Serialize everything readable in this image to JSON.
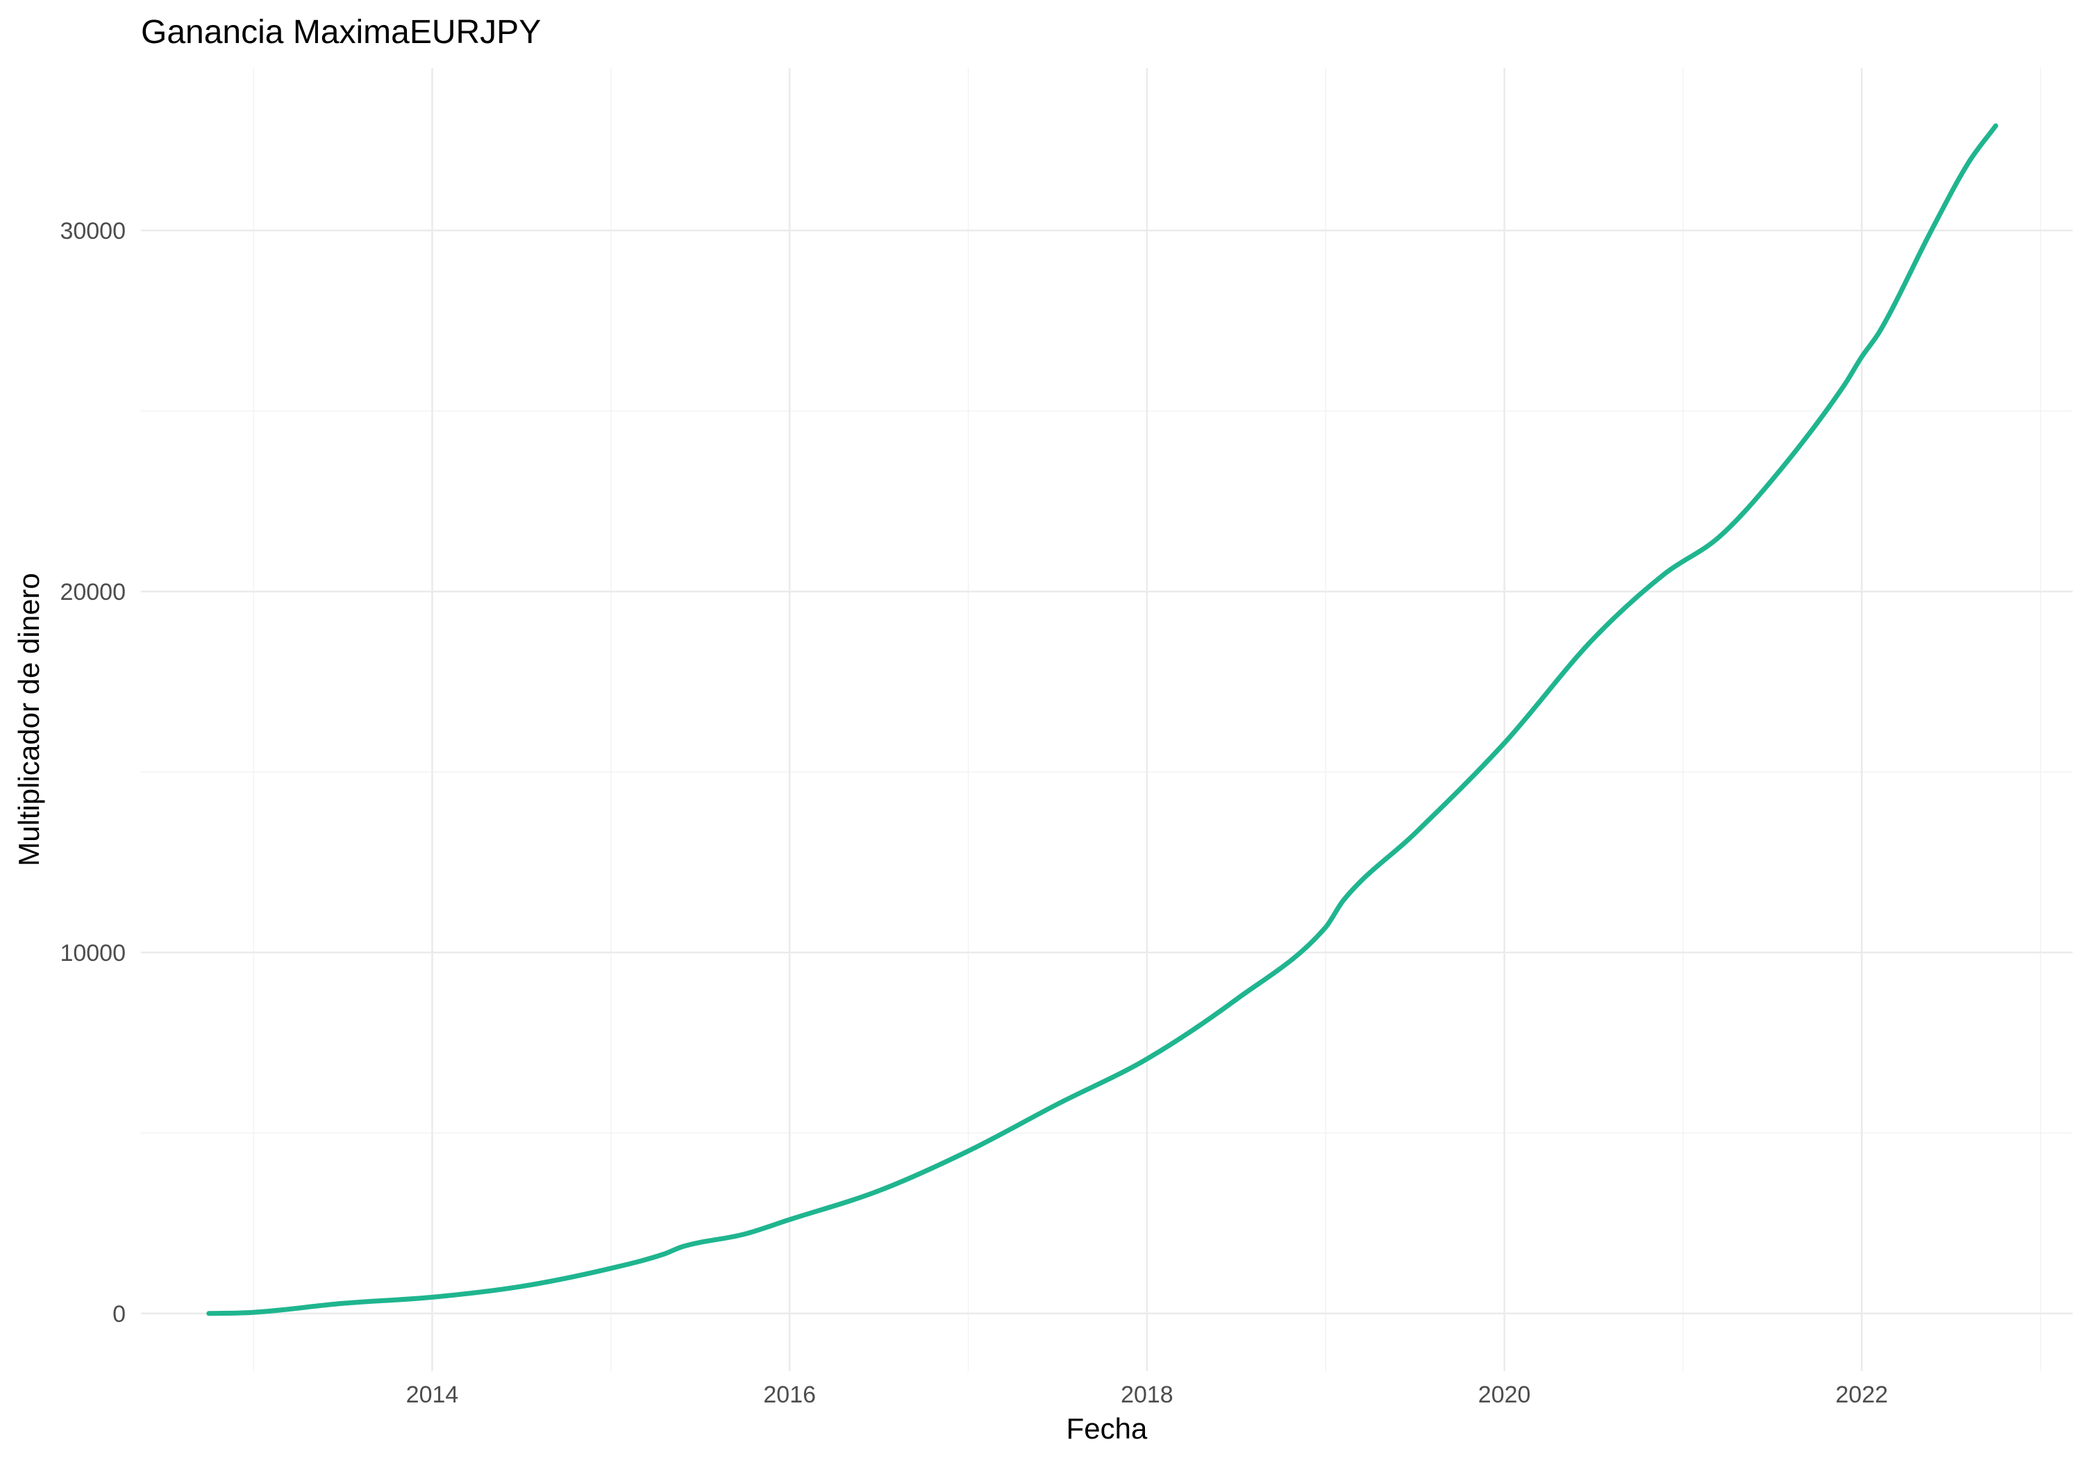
{
  "chart_data": {
    "type": "line",
    "title": "Ganancia MaximaEURJPY",
    "xlabel": "Fecha",
    "ylabel": "Multiplicador de dinero",
    "xlim": [
      2012.37,
      2023.18
    ],
    "ylim": [
      -1600,
      34500
    ],
    "x_ticks": [
      2014,
      2016,
      2018,
      2020,
      2022
    ],
    "x_tick_labels": [
      "2014",
      "2016",
      "2018",
      "2020",
      "2022"
    ],
    "y_ticks": [
      0,
      10000,
      20000,
      30000
    ],
    "y_tick_labels": [
      "0",
      "10000",
      "20000",
      "30000"
    ],
    "grid": true,
    "legend": "none",
    "series": [
      {
        "color": "#1fb58f",
        "x": [
          2012.75,
          2013.0,
          2013.5,
          2014.0,
          2014.5,
          2015.0,
          2015.3,
          2015.4,
          2015.75,
          2016.0,
          2016.5,
          2017.0,
          2017.5,
          2018.0,
          2018.5,
          2019.0,
          2019.1,
          2019.5,
          2020.0,
          2020.5,
          2020.9,
          2021.2,
          2021.5,
          2021.9,
          2022.0,
          2022.1,
          2022.4,
          2022.6,
          2022.75
        ],
        "y": [
          0,
          30,
          280,
          450,
          750,
          1250,
          1650,
          1850,
          2200,
          2600,
          3400,
          4500,
          5800,
          7050,
          8700,
          10700,
          11450,
          13300,
          15800,
          18700,
          20500,
          21500,
          23100,
          25700,
          26500,
          27200,
          30100,
          31900,
          32900
        ]
      }
    ]
  }
}
